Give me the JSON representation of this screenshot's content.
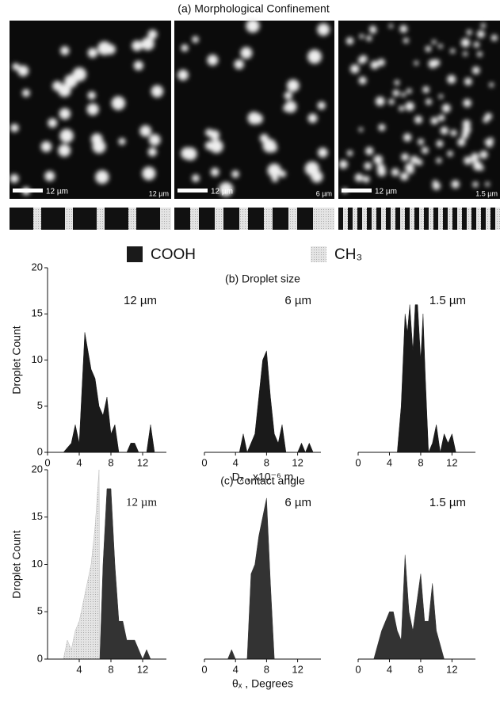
{
  "figure_title": "(a) Morphological Confinement",
  "images": [
    {
      "scale_bar": "12 µm",
      "period": "12 µm"
    },
    {
      "scale_bar": "12 µm",
      "period": "6 µm"
    },
    {
      "scale_bar": "12 µm",
      "period": "1.5 µm"
    }
  ],
  "legend": [
    {
      "name": "COOH",
      "color": "#1a1a1a"
    },
    {
      "name": "CH₃",
      "color": "#dcdcdc"
    }
  ],
  "chart_data": [
    {
      "type": "area",
      "ylabel": "Droplet Count",
      "annotation": "12 µm",
      "xlim": [
        0,
        15
      ],
      "ylim": [
        0,
        20
      ],
      "xticks": [
        0,
        4,
        8,
        12
      ],
      "yticks": [
        0,
        5,
        10,
        15,
        20
      ],
      "series": [
        {
          "color": "#1a1a1a",
          "x": [
            2,
            3,
            3.5,
            4,
            4.7,
            5.5,
            6,
            6.5,
            7,
            7.5,
            8,
            8.5,
            9,
            10,
            10.5,
            11,
            11.5,
            12,
            12.5,
            13,
            13.5
          ],
          "values": [
            0,
            1,
            3,
            1,
            13,
            9,
            8,
            5,
            4,
            6,
            2,
            3,
            0,
            0,
            1,
            1,
            0,
            0,
            0,
            3,
            0
          ]
        }
      ]
    },
    {
      "type": "area",
      "title": "(b) Droplet size",
      "xlabel": "Dₓ , x10⁻⁶ m",
      "annotation": "6 µm",
      "xlim": [
        0,
        15
      ],
      "ylim": [
        0,
        20
      ],
      "xticks": [
        0,
        4,
        8,
        12
      ],
      "series": [
        {
          "color": "#1a1a1a",
          "x": [
            4.5,
            5,
            5.5,
            6,
            6.5,
            7,
            7.5,
            8,
            8.5,
            9,
            9.5,
            10,
            10.5,
            11,
            12,
            12.5,
            13,
            13.5,
            14
          ],
          "values": [
            0,
            2,
            0,
            1,
            2,
            6,
            10,
            11,
            6,
            2,
            1,
            3,
            0,
            0,
            0,
            1,
            0,
            1,
            0
          ]
        }
      ]
    },
    {
      "type": "area",
      "annotation": "1.5 µm",
      "xlim": [
        0,
        15
      ],
      "ylim": [
        0,
        20
      ],
      "xticks": [
        0,
        4,
        8,
        12
      ],
      "series": [
        {
          "color": "#1a1a1a",
          "x": [
            5,
            5.5,
            6,
            6.3,
            6.6,
            7,
            7.3,
            7.6,
            8,
            8.3,
            8.6,
            9,
            9.5,
            10,
            10.5,
            11,
            11.5,
            12,
            12.5
          ],
          "values": [
            0,
            5,
            15,
            13,
            16,
            11,
            16,
            16,
            10,
            15,
            8,
            0,
            1,
            3,
            0,
            2,
            1,
            2,
            0
          ]
        }
      ]
    },
    {
      "type": "area",
      "ylabel": "Droplet Count",
      "annotation": "12 µm",
      "xlim": [
        0,
        15
      ],
      "ylim": [
        0,
        20
      ],
      "xticks": [
        4,
        8,
        12
      ],
      "yticks": [
        0,
        5,
        10,
        15,
        20
      ],
      "series": [
        {
          "color": "#dcdcdc",
          "x": [
            2,
            2.5,
            3,
            3.5,
            4,
            4.5,
            5,
            5.5,
            6,
            6.5,
            6.6
          ],
          "values": [
            0,
            2,
            1,
            3,
            4,
            6,
            8,
            10,
            14,
            20,
            0
          ]
        },
        {
          "color": "#333333",
          "x": [
            6.6,
            7,
            7.5,
            8,
            8.5,
            9,
            9.5,
            10,
            10.5,
            11,
            11.5,
            12,
            12.5,
            13
          ],
          "values": [
            0,
            10,
            18,
            18,
            10,
            4,
            4,
            2,
            2,
            2,
            1,
            0,
            1,
            0
          ]
        }
      ]
    },
    {
      "type": "area",
      "title": "(c) Contact angle",
      "xlabel": "θₓ , Degrees",
      "annotation": "6 µm",
      "xlim": [
        0,
        15
      ],
      "ylim": [
        0,
        20
      ],
      "xticks": [
        0,
        4,
        8,
        12
      ],
      "series": [
        {
          "color": "#333333",
          "x": [
            3,
            3.5,
            4,
            5.5,
            6,
            6.5,
            7,
            7.5,
            8,
            8.5,
            9
          ],
          "values": [
            0,
            1,
            0,
            0,
            9,
            10,
            13,
            15,
            17,
            8,
            0
          ]
        }
      ]
    },
    {
      "type": "area",
      "annotation": "1.5 µm",
      "xlim": [
        0,
        15
      ],
      "ylim": [
        0,
        20
      ],
      "xticks": [
        0,
        4,
        8,
        12
      ],
      "series": [
        {
          "color": "#333333",
          "x": [
            2,
            3,
            4,
            4.5,
            5,
            5.5,
            6,
            6.5,
            7,
            7.5,
            8,
            8.5,
            9,
            9.5,
            10,
            11
          ],
          "values": [
            0,
            3,
            5,
            5,
            3,
            2,
            11,
            5,
            3,
            6,
            9,
            4,
            4,
            8,
            3,
            0
          ]
        }
      ]
    }
  ]
}
